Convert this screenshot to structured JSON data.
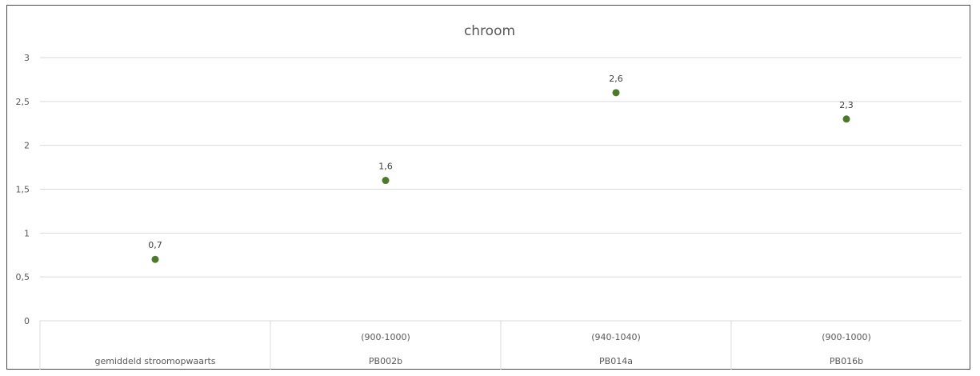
{
  "chart_data": {
    "type": "scatter",
    "title": "chroom",
    "xlabel": "",
    "ylabel": "",
    "ylim": [
      0,
      3
    ],
    "yticks": [
      0,
      0.5,
      1,
      1.5,
      2,
      2.5,
      3
    ],
    "ytick_labels": [
      "0",
      "0,5",
      "1",
      "1,5",
      "2",
      "2,5",
      "3"
    ],
    "grid": true,
    "legend": "none",
    "categories": [
      {
        "line1": "",
        "line2": "gemiddeld stroomopwaarts"
      },
      {
        "line1": "(900-1000)",
        "line2": "PB002b"
      },
      {
        "line1": "(940-1040)",
        "line2": "PB014a"
      },
      {
        "line1": "(900-1000)",
        "line2": "PB016b"
      }
    ],
    "series": [
      {
        "values": [
          0.7,
          1.6,
          2.6,
          2.3
        ],
        "data_labels": [
          "0,7",
          "1,6",
          "2,6",
          "2,3"
        ],
        "color": "#4a7a2a"
      }
    ]
  }
}
